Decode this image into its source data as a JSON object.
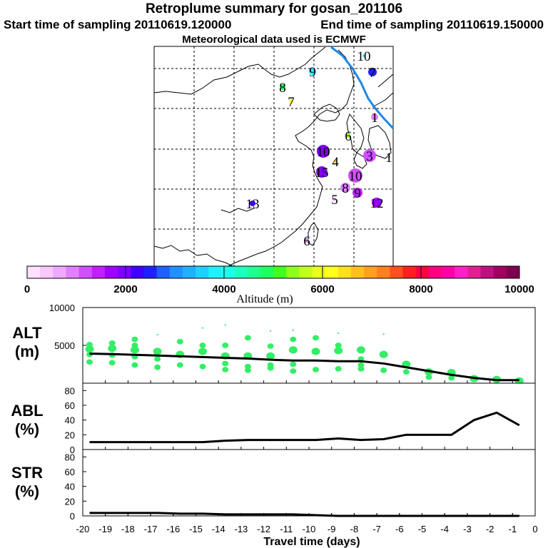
{
  "header": {
    "title": "Retroplume summary for gosan_201106",
    "start_time": "Start time of sampling 20110619.120000",
    "end_time": "End time of sampling 20110619.150000",
    "met": "Meteorological data used is ECMWF"
  },
  "colorbar": {
    "label": "Altitude  (m)",
    "ticks": [
      "0",
      "2000",
      "4000",
      "6000",
      "8000",
      "10000"
    ],
    "min": 0,
    "max": 10000,
    "colors": [
      "#ffe0ff",
      "#f8c8ff",
      "#f0a8ff",
      "#e080ff",
      "#d050ff",
      "#c020ff",
      "#a000ff",
      "#8000ff",
      "#4000ff",
      "#2020ff",
      "#2060ff",
      "#2090ff",
      "#20b0ff",
      "#20d0ff",
      "#20f0ff",
      "#20ffe8",
      "#20ffc0",
      "#20ff90",
      "#20ff60",
      "#40ff20",
      "#90ff20",
      "#c0ff20",
      "#e8ff20",
      "#ffff20",
      "#ffe020",
      "#ffc020",
      "#ffa020",
      "#ff8020",
      "#ff5020",
      "#ff2020",
      "#ff0040",
      "#ff0080",
      "#ff00a8",
      "#ff20c8",
      "#e02090",
      "#c01080",
      "#a00060",
      "#800050"
    ]
  },
  "map_points": [
    {
      "label": "10",
      "alt": 4200,
      "size": 2
    },
    {
      "label": "9",
      "alt": 3900,
      "size": 5
    },
    {
      "label": "8",
      "alt": 4800,
      "size": 4
    },
    {
      "label": "7",
      "alt": 6200,
      "size": 3
    },
    {
      "label": "6",
      "alt": 5400,
      "size": 3
    },
    {
      "label": "10",
      "alt": 2000,
      "size": 9
    },
    {
      "label": "4",
      "alt": 6800,
      "size": 2
    },
    {
      "label": "15",
      "alt": 2100,
      "size": 8
    },
    {
      "label": "10",
      "alt": 1200,
      "size": 10
    },
    {
      "label": "8",
      "alt": 900,
      "size": 7
    },
    {
      "label": "9",
      "alt": 1400,
      "size": 7
    },
    {
      "label": "5",
      "alt": 800,
      "size": 2
    },
    {
      "label": "12",
      "alt": 1800,
      "size": 7
    },
    {
      "label": "13",
      "alt": 2300,
      "size": 4
    },
    {
      "label": "6",
      "alt": 900,
      "size": 3
    },
    {
      "label": "3",
      "alt": 1300,
      "size": 9
    },
    {
      "label": "1",
      "alt": 900,
      "size": 5
    },
    {
      "label": "7",
      "alt": 2400,
      "size": 6
    },
    {
      "label": "1",
      "alt": 700,
      "size": 2
    }
  ],
  "chart_data": [
    {
      "type": "scatter+line",
      "name": "ALT",
      "ylabel": "ALT\n(m)",
      "ylim": [
        0,
        10000
      ],
      "yticks": [
        5000,
        10000
      ],
      "x": [
        -19.7,
        -18.7,
        -17.7,
        -16.7,
        -15.7,
        -14.7,
        -13.7,
        -12.7,
        -11.7,
        -10.7,
        -9.7,
        -8.7,
        -7.7,
        -6.7,
        -5.7,
        -4.7,
        -3.7,
        -2.7,
        -1.7,
        -0.7
      ],
      "median": [
        3900,
        3850,
        3750,
        3650,
        3550,
        3450,
        3350,
        3250,
        3100,
        3000,
        3000,
        2900,
        2900,
        2600,
        2100,
        1600,
        1100,
        700,
        400,
        400
      ],
      "scatter": [
        {
          "x": -19.7,
          "y": [
            4500,
            3800,
            2800,
            5100
          ]
        },
        {
          "x": -18.7,
          "y": [
            4600,
            3700,
            2700,
            5300
          ]
        },
        {
          "x": -17.7,
          "y": [
            4400,
            3500,
            2400,
            5000,
            5800
          ]
        },
        {
          "x": -16.7,
          "y": [
            4200,
            3200,
            2100,
            6400
          ]
        },
        {
          "x": -15.7,
          "y": [
            3800,
            2400,
            5500
          ]
        },
        {
          "x": -14.7,
          "y": [
            4200,
            2200,
            5000,
            7300
          ]
        },
        {
          "x": -13.7,
          "y": [
            3600,
            2600,
            1800,
            5000,
            7700
          ]
        },
        {
          "x": -12.7,
          "y": [
            3600,
            2200,
            1700,
            6000
          ]
        },
        {
          "x": -11.7,
          "y": [
            3600,
            2400,
            2000,
            4900,
            6900
          ]
        },
        {
          "x": -10.7,
          "y": [
            4400,
            2500,
            1600,
            5800,
            7000
          ]
        },
        {
          "x": -9.7,
          "y": [
            4200,
            1800,
            6000
          ]
        },
        {
          "x": -8.7,
          "y": [
            4300,
            1900,
            5000,
            6600
          ]
        },
        {
          "x": -7.7,
          "y": [
            4400,
            3200,
            2400,
            1900
          ]
        },
        {
          "x": -6.7,
          "y": [
            3800,
            1700,
            6500
          ]
        },
        {
          "x": -5.7,
          "y": [
            2500,
            1500
          ]
        },
        {
          "x": -4.7,
          "y": [
            1500,
            800
          ]
        },
        {
          "x": -3.7,
          "y": [
            1400,
            700
          ]
        },
        {
          "x": -2.7,
          "y": [
            600
          ]
        },
        {
          "x": -1.7,
          "y": [
            500
          ]
        },
        {
          "x": -0.7,
          "y": [
            300
          ]
        }
      ]
    },
    {
      "type": "line",
      "name": "ABL",
      "ylabel": "ABL\n(%)",
      "ylim": [
        0,
        90
      ],
      "yticks": [
        0,
        20,
        40,
        60,
        80
      ],
      "x": [
        -19.7,
        -18.7,
        -17.7,
        -16.7,
        -15.7,
        -14.7,
        -13.7,
        -12.7,
        -11.7,
        -10.7,
        -9.7,
        -8.7,
        -7.7,
        -6.7,
        -5.7,
        -4.7,
        -3.7,
        -2.7,
        -1.7,
        -0.7
      ],
      "values": [
        10,
        10,
        10,
        10,
        10,
        10,
        12,
        13,
        13,
        13,
        13,
        15,
        13,
        14,
        20,
        20,
        20,
        40,
        50,
        33
      ]
    },
    {
      "type": "line",
      "name": "STR",
      "ylabel": "STR\n(%)",
      "ylim": [
        0,
        90
      ],
      "yticks": [
        0,
        20,
        40,
        60,
        80
      ],
      "x": [
        -19.7,
        -18.7,
        -17.7,
        -16.7,
        -15.7,
        -14.7,
        -13.7,
        -12.7,
        -11.7,
        -10.7,
        -9.7,
        -8.7,
        -7.7,
        -6.7,
        -5.7,
        -4.7,
        -3.7,
        -2.7,
        -1.7,
        -0.7
      ],
      "values": [
        4,
        4,
        4,
        4,
        3,
        3,
        2,
        2,
        2,
        2,
        1,
        0,
        0,
        0,
        0,
        0,
        0,
        0,
        0,
        0
      ]
    }
  ],
  "xaxis": {
    "label": "Travel time (days)",
    "xlim": [
      -20,
      0
    ],
    "ticks": [
      "-20",
      "-19",
      "-18",
      "-17",
      "-16",
      "-15",
      "-14",
      "-13",
      "-12",
      "-11",
      "-10",
      "-9",
      "-8",
      "-7",
      "-6",
      "-5",
      "-4",
      "-3",
      "-2",
      "-1",
      "0"
    ]
  }
}
